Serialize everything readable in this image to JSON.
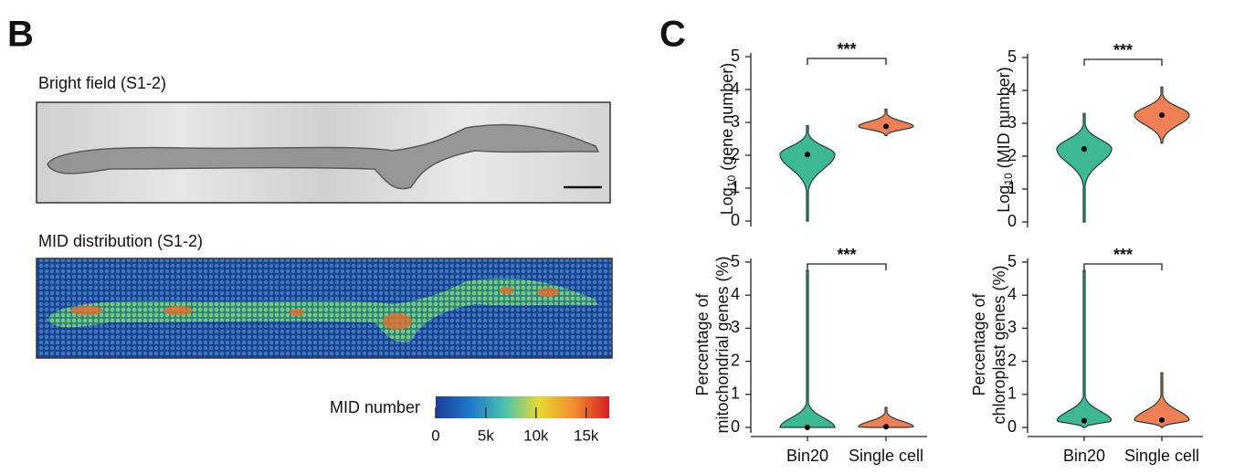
{
  "panel_b": {
    "label": "B",
    "bright_title": "Bright field (S1-2)",
    "mid_title": "MID distribution (S1-2)",
    "colorbar": {
      "label": "MID number",
      "lim": [
        0,
        17300
      ],
      "ticks": [
        0,
        {
          "value": 5000,
          "label": "5k"
        },
        {
          "value": 10000,
          "label": "10k"
        },
        {
          "value": 15000,
          "label": "15k"
        }
      ]
    }
  },
  "panel_c": {
    "label": "C"
  },
  "chart_data": [
    {
      "type": "violin",
      "ylabel": "Log",
      "ylabel_sub": "10",
      "ylabel_rest": "(gene number)",
      "categories": [
        null,
        null
      ],
      "values": [
        2.02,
        2.88
      ],
      "min": [
        0,
        2.6
      ],
      "max": [
        2.9,
        3.4
      ],
      "colors": [
        "#3db895",
        "#f07f55"
      ],
      "ylim": [
        0,
        5
      ],
      "yticks": [
        0,
        1,
        2,
        3,
        4,
        5
      ],
      "significance": "***"
    },
    {
      "type": "violin",
      "ylabel": "Log",
      "ylabel_sub": "10",
      "ylabel_rest": "(MID number)",
      "categories": [
        null,
        null
      ],
      "values": [
        2.22,
        3.25
      ],
      "min": [
        0,
        2.4
      ],
      "max": [
        3.3,
        4.1
      ],
      "colors": [
        "#3db895",
        "#f07f55"
      ],
      "ylim": [
        0,
        5
      ],
      "yticks": [
        0,
        1,
        2,
        3,
        4,
        5
      ],
      "significance": "***"
    },
    {
      "type": "violin",
      "ylabel_lines": [
        "Percentage of",
        "mitochondrial genes (%)"
      ],
      "categories": [
        "Bin20",
        "Single cell"
      ],
      "values": [
        0,
        0.02
      ],
      "min": [
        0,
        0
      ],
      "max": [
        4.75,
        0.6
      ],
      "colors": [
        "#3db895",
        "#f07f55"
      ],
      "ylim": [
        0,
        5
      ],
      "yticks": [
        0,
        1,
        2,
        3,
        4,
        5
      ],
      "significance": "***"
    },
    {
      "type": "violin",
      "ylabel_lines": [
        "Percentage of",
        "chloroplast genes (%)"
      ],
      "categories": [
        "Bin20",
        "Single cell"
      ],
      "values": [
        0.2,
        0.22
      ],
      "min": [
        0,
        0
      ],
      "max": [
        4.75,
        1.65
      ],
      "colors": [
        "#3db895",
        "#f07f55"
      ],
      "ylim": [
        0,
        5
      ],
      "yticks": [
        0,
        1,
        2,
        3,
        4,
        5
      ],
      "significance": "***"
    }
  ]
}
